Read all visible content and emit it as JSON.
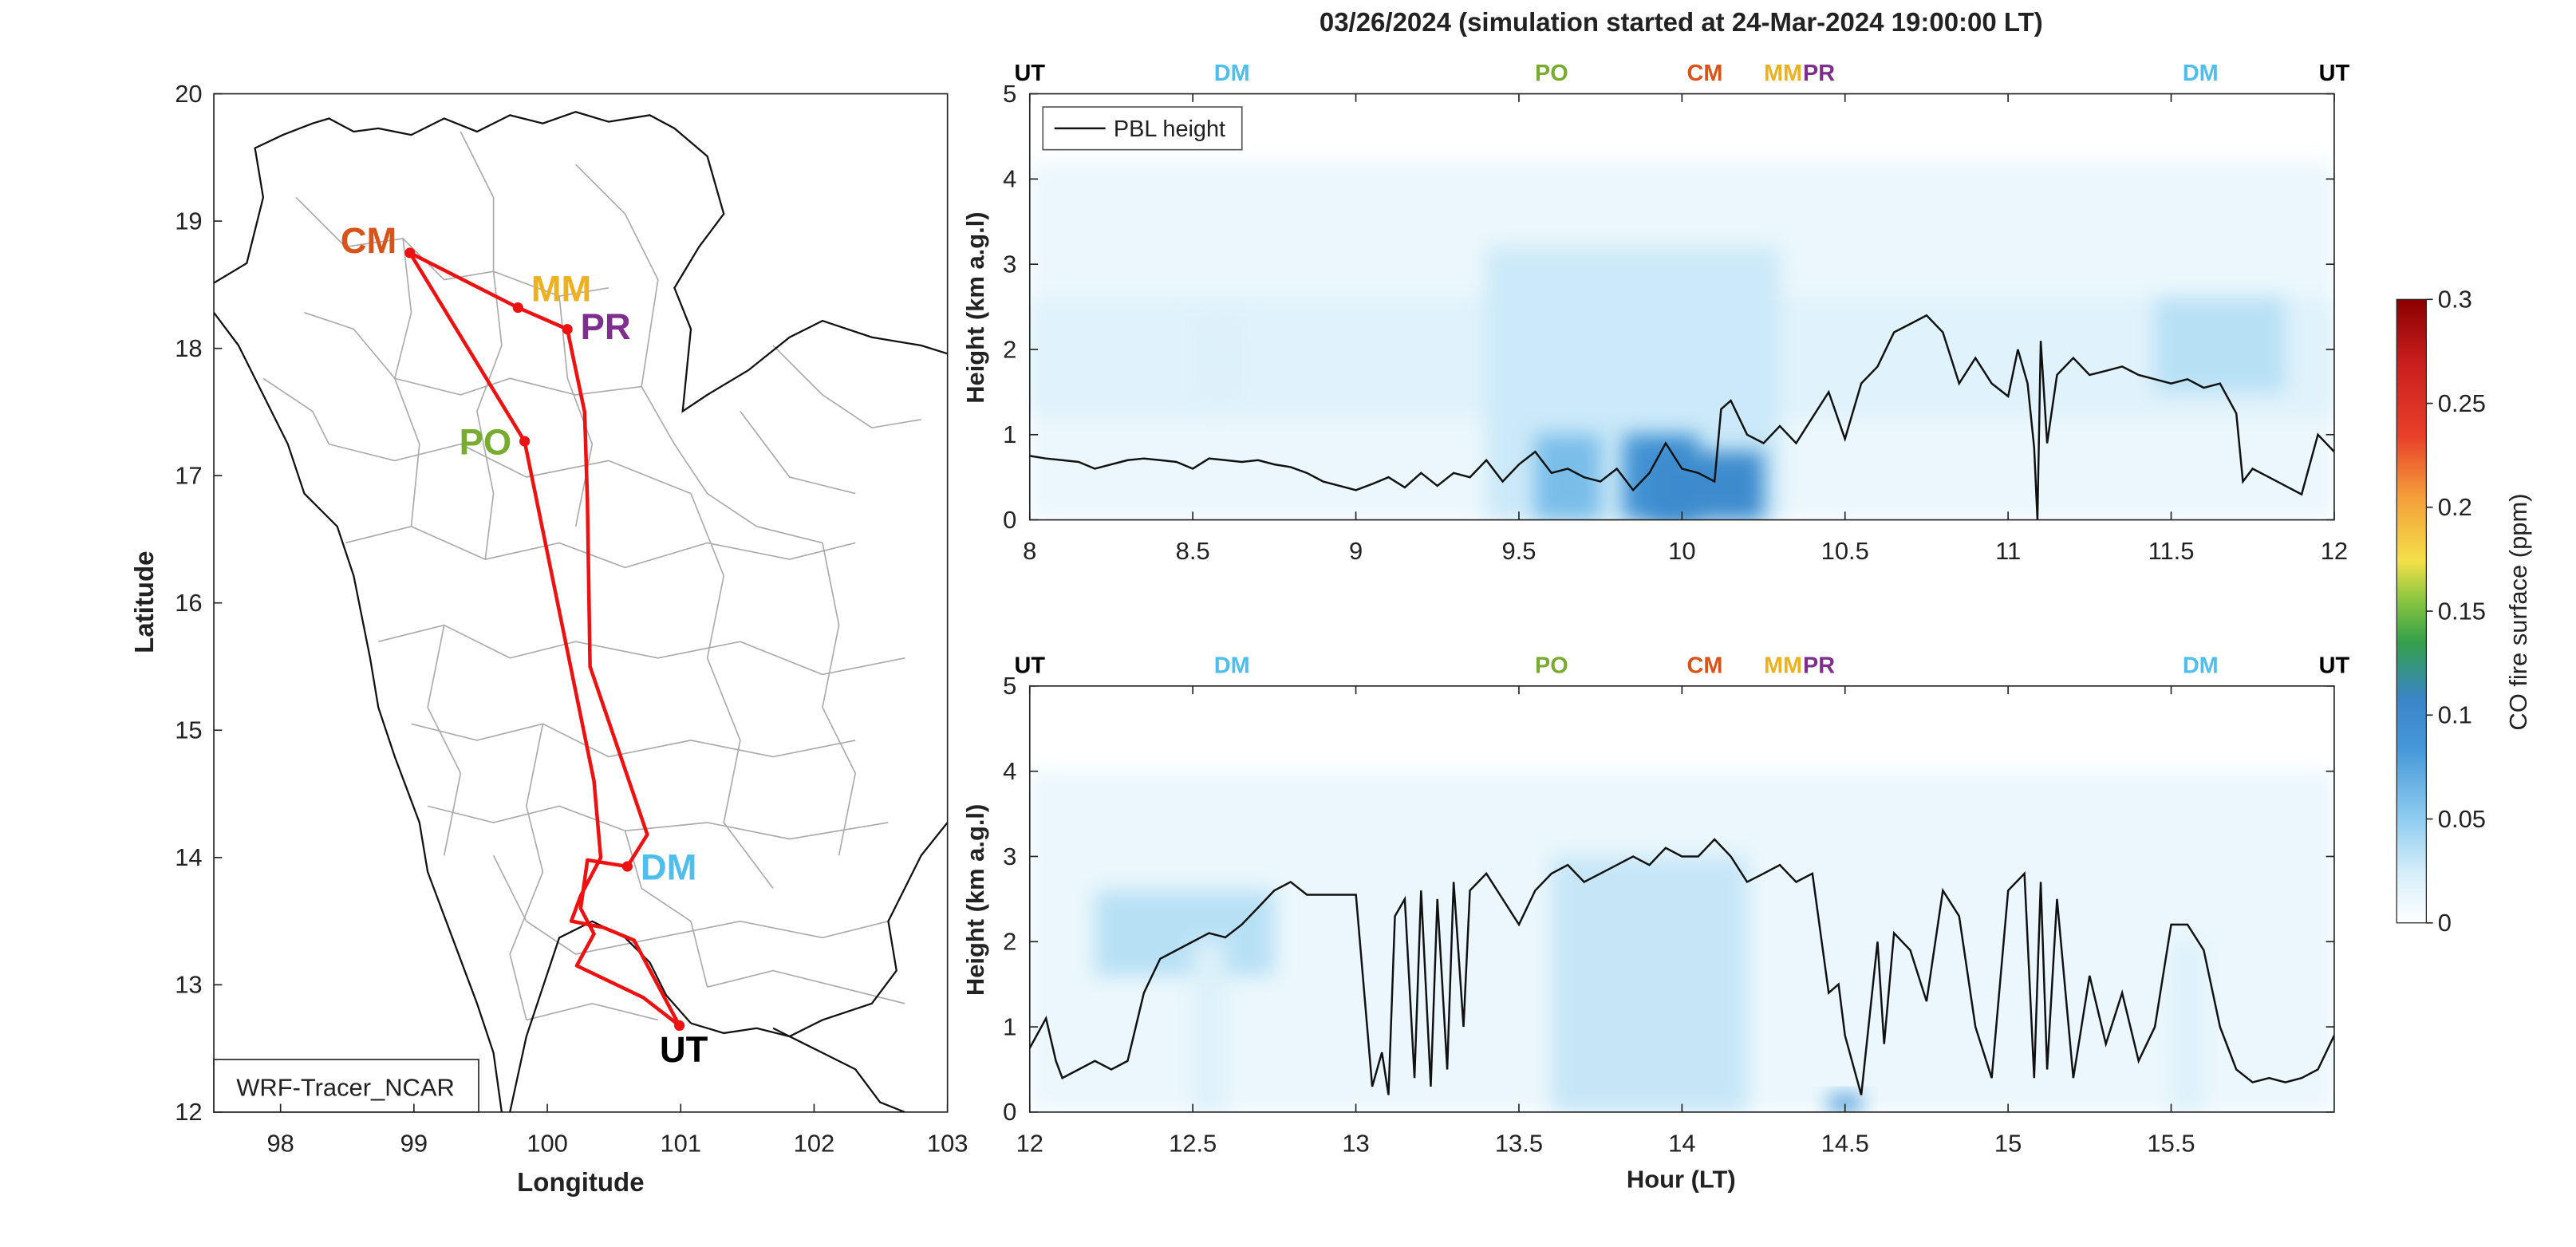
{
  "title": "03/26/2024 (simulation started at 24-Mar-2024 19:00:00 LT)",
  "chart_data": [
    {
      "type": "line",
      "panel": "map",
      "xlabel": "Longitude",
      "ylabel": "Latitude",
      "xlim": [
        97.5,
        103
      ],
      "ylim": [
        12,
        20
      ],
      "xticks": [
        "98",
        "99",
        "100",
        "101",
        "102",
        "103"
      ],
      "yticks": [
        "12",
        "13",
        "14",
        "15",
        "16",
        "17",
        "18",
        "19",
        "20"
      ],
      "model_label": "WRF-Tracer_NCAR",
      "stations": [
        {
          "label": "CM",
          "lon": 98.97,
          "lat": 18.75,
          "color": "#D95319"
        },
        {
          "label": "MM",
          "lon": 99.78,
          "lat": 18.32,
          "color": "#EDB120"
        },
        {
          "label": "PR",
          "lon": 100.15,
          "lat": 18.15,
          "color": "#7E2F8E"
        },
        {
          "label": "PO",
          "lon": 99.83,
          "lat": 17.27,
          "color": "#77AC30"
        },
        {
          "label": "DM",
          "lon": 100.6,
          "lat": 13.93,
          "color": "#4DBEEE"
        },
        {
          "label": "UT",
          "lon": 100.99,
          "lat": 12.68,
          "color": "#000000"
        }
      ],
      "route": {
        "color": "#EE1111",
        "lon": [
          100.99,
          100.72,
          100.22,
          100.35,
          100.25,
          100.3,
          100.6,
          100.75,
          100.32,
          100.3,
          100.28,
          100.2,
          100.15,
          99.78,
          98.97,
          99.83,
          100.35,
          100.4,
          100.25,
          100.18,
          100.42,
          100.65,
          100.99
        ],
        "lat": [
          12.68,
          12.9,
          13.15,
          13.4,
          13.6,
          13.98,
          13.93,
          14.18,
          15.5,
          16.8,
          17.5,
          17.9,
          18.15,
          18.32,
          18.75,
          17.27,
          14.6,
          14.0,
          13.7,
          13.5,
          13.45,
          13.35,
          12.68
        ]
      }
    },
    {
      "type": "heatmap",
      "panel": "top",
      "xlabel": "",
      "ylabel": "Height (km a.g.l)",
      "xlim": [
        8,
        12
      ],
      "ylim": [
        0,
        5
      ],
      "xticks": [
        "8",
        "8.5",
        "9",
        "9.5",
        "10",
        "10.5",
        "11",
        "11.5",
        "12"
      ],
      "yticks": [
        "0",
        "1",
        "2",
        "3",
        "4",
        "5"
      ],
      "legend": "PBL height",
      "station_markers": [
        {
          "label": "UT",
          "x": 8.0,
          "color": "#000000"
        },
        {
          "label": "DM",
          "x": 8.62,
          "color": "#4DBEEE"
        },
        {
          "label": "PO",
          "x": 9.6,
          "color": "#77AC30"
        },
        {
          "label": "CM",
          "x": 10.07,
          "color": "#D95319"
        },
        {
          "label": "MM",
          "x": 10.31,
          "color": "#EDB120"
        },
        {
          "label": "PR",
          "x": 10.42,
          "color": "#7E2F8E"
        },
        {
          "label": "DM",
          "x": 11.59,
          "color": "#4DBEEE"
        },
        {
          "label": "UT",
          "x": 12.0,
          "color": "#000000"
        }
      ],
      "co_plumes": [
        {
          "x": [
            8.0,
            12.0
          ],
          "y": [
            0.0,
            4.2
          ],
          "value": 0.012
        },
        {
          "x": [
            8.0,
            12.0
          ],
          "y": [
            1.2,
            2.6
          ],
          "value": 0.018
        },
        {
          "x": [
            9.4,
            10.3
          ],
          "y": [
            0.0,
            3.2
          ],
          "value": 0.028
        },
        {
          "x": [
            9.55,
            9.75
          ],
          "y": [
            0.0,
            1.0
          ],
          "value": 0.06
        },
        {
          "x": [
            9.82,
            10.05
          ],
          "y": [
            0.0,
            1.0
          ],
          "value": 0.09
        },
        {
          "x": [
            9.9,
            10.25
          ],
          "y": [
            0.0,
            0.8
          ],
          "value": 0.1
        },
        {
          "x": [
            11.45,
            11.85
          ],
          "y": [
            1.5,
            2.6
          ],
          "value": 0.035
        },
        {
          "x": [
            8.5,
            8.65
          ],
          "y": [
            1.4,
            2.4
          ],
          "value": 0.02
        }
      ],
      "pbl": {
        "x": [
          8.0,
          8.05,
          8.1,
          8.15,
          8.2,
          8.25,
          8.3,
          8.35,
          8.4,
          8.45,
          8.5,
          8.55,
          8.6,
          8.65,
          8.7,
          8.75,
          8.8,
          8.85,
          8.9,
          8.95,
          9.0,
          9.05,
          9.1,
          9.15,
          9.2,
          9.25,
          9.3,
          9.35,
          9.4,
          9.45,
          9.5,
          9.55,
          9.6,
          9.65,
          9.7,
          9.75,
          9.8,
          9.85,
          9.9,
          9.95,
          10.0,
          10.05,
          10.1,
          10.12,
          10.15,
          10.2,
          10.25,
          10.3,
          10.35,
          10.4,
          10.45,
          10.5,
          10.55,
          10.6,
          10.65,
          10.7,
          10.75,
          10.8,
          10.85,
          10.9,
          10.95,
          11.0,
          11.03,
          11.06,
          11.08,
          11.09,
          11.1,
          11.12,
          11.15,
          11.2,
          11.25,
          11.3,
          11.35,
          11.4,
          11.45,
          11.5,
          11.55,
          11.6,
          11.65,
          11.7,
          11.72,
          11.75,
          11.8,
          11.85,
          11.9,
          11.95,
          12.0
        ],
        "y": [
          0.75,
          0.72,
          0.7,
          0.68,
          0.6,
          0.65,
          0.7,
          0.72,
          0.7,
          0.68,
          0.6,
          0.72,
          0.7,
          0.68,
          0.7,
          0.65,
          0.62,
          0.55,
          0.45,
          0.4,
          0.35,
          0.42,
          0.5,
          0.38,
          0.55,
          0.4,
          0.55,
          0.5,
          0.7,
          0.45,
          0.65,
          0.8,
          0.55,
          0.6,
          0.5,
          0.45,
          0.6,
          0.35,
          0.55,
          0.9,
          0.6,
          0.55,
          0.45,
          1.3,
          1.4,
          1.0,
          0.9,
          1.1,
          0.9,
          1.2,
          1.5,
          0.95,
          1.6,
          1.8,
          2.2,
          2.3,
          2.4,
          2.2,
          1.6,
          1.9,
          1.6,
          1.45,
          2.0,
          1.6,
          0.85,
          0.0,
          2.1,
          0.9,
          1.7,
          1.9,
          1.7,
          1.75,
          1.8,
          1.7,
          1.65,
          1.6,
          1.65,
          1.55,
          1.6,
          1.25,
          0.45,
          0.6,
          0.5,
          0.4,
          0.3,
          1.0,
          0.8
        ]
      }
    },
    {
      "type": "heatmap",
      "panel": "bottom",
      "xlabel": "Hour (LT)",
      "ylabel": "Height (km a.g.l)",
      "xlim": [
        12,
        16
      ],
      "ylim": [
        0,
        5
      ],
      "xticks": [
        "12",
        "12.5",
        "13",
        "13.5",
        "14",
        "14.5",
        "15",
        "15.5"
      ],
      "yticks": [
        "0",
        "1",
        "2",
        "3",
        "4",
        "5"
      ],
      "station_markers": [
        {
          "label": "UT",
          "x": 12.0,
          "color": "#000000"
        },
        {
          "label": "DM",
          "x": 12.62,
          "color": "#4DBEEE"
        },
        {
          "label": "PO",
          "x": 13.6,
          "color": "#77AC30"
        },
        {
          "label": "CM",
          "x": 14.07,
          "color": "#D95319"
        },
        {
          "label": "MM",
          "x": 14.31,
          "color": "#EDB120"
        },
        {
          "label": "PR",
          "x": 14.42,
          "color": "#7E2F8E"
        },
        {
          "label": "DM",
          "x": 15.59,
          "color": "#4DBEEE"
        },
        {
          "label": "UT",
          "x": 16.0,
          "color": "#000000"
        }
      ],
      "co_plumes": [
        {
          "x": [
            12.0,
            16.0
          ],
          "y": [
            0.0,
            4.0
          ],
          "value": 0.012
        },
        {
          "x": [
            12.2,
            12.75
          ],
          "y": [
            1.6,
            2.6
          ],
          "value": 0.035
        },
        {
          "x": [
            13.6,
            14.2
          ],
          "y": [
            0.0,
            3.0
          ],
          "value": 0.03
        },
        {
          "x": [
            14.45,
            14.55
          ],
          "y": [
            0.0,
            0.2
          ],
          "value": 0.08
        },
        {
          "x": [
            12.5,
            12.6
          ],
          "y": [
            0.0,
            2.0
          ],
          "value": 0.02
        },
        {
          "x": [
            15.5,
            15.6
          ],
          "y": [
            0.0,
            2.0
          ],
          "value": 0.02
        }
      ],
      "pbl": {
        "x": [
          12.0,
          12.05,
          12.08,
          12.1,
          12.15,
          12.2,
          12.25,
          12.3,
          12.35,
          12.4,
          12.45,
          12.5,
          12.55,
          12.6,
          12.65,
          12.7,
          12.75,
          12.8,
          12.85,
          12.9,
          12.95,
          13.0,
          13.05,
          13.08,
          13.1,
          13.12,
          13.15,
          13.18,
          13.2,
          13.23,
          13.25,
          13.28,
          13.3,
          13.33,
          13.35,
          13.4,
          13.45,
          13.5,
          13.55,
          13.6,
          13.65,
          13.7,
          13.75,
          13.8,
          13.85,
          13.9,
          13.95,
          14.0,
          14.05,
          14.1,
          14.15,
          14.2,
          14.25,
          14.3,
          14.35,
          14.4,
          14.45,
          14.48,
          14.5,
          14.55,
          14.6,
          14.62,
          14.65,
          14.7,
          14.75,
          14.8,
          14.85,
          14.9,
          14.95,
          15.0,
          15.05,
          15.08,
          15.1,
          15.12,
          15.15,
          15.2,
          15.25,
          15.3,
          15.35,
          15.4,
          15.45,
          15.5,
          15.55,
          15.6,
          15.65,
          15.7,
          15.75,
          15.8,
          15.85,
          15.9,
          15.95,
          16.0
        ],
        "y": [
          0.75,
          1.1,
          0.6,
          0.4,
          0.5,
          0.6,
          0.5,
          0.6,
          1.4,
          1.8,
          1.9,
          2.0,
          2.1,
          2.05,
          2.2,
          2.4,
          2.6,
          2.7,
          2.55,
          2.55,
          2.55,
          2.55,
          0.3,
          0.7,
          0.2,
          2.3,
          2.5,
          0.4,
          2.6,
          0.3,
          2.5,
          0.5,
          2.7,
          1.0,
          2.6,
          2.8,
          2.5,
          2.2,
          2.6,
          2.8,
          2.9,
          2.7,
          2.8,
          2.9,
          3.0,
          2.9,
          3.1,
          3.0,
          3.0,
          3.2,
          3.0,
          2.7,
          2.8,
          2.9,
          2.7,
          2.8,
          1.4,
          1.5,
          0.9,
          0.2,
          2.0,
          0.8,
          2.1,
          1.9,
          1.3,
          2.6,
          2.3,
          1.0,
          0.4,
          2.6,
          2.8,
          0.4,
          2.7,
          0.5,
          2.5,
          0.4,
          1.6,
          0.8,
          1.4,
          0.6,
          1.0,
          2.2,
          2.2,
          1.9,
          1.0,
          0.5,
          0.35,
          0.4,
          0.35,
          0.4,
          0.5,
          0.9
        ]
      }
    },
    {
      "type": "colorbar",
      "label": "CO fire surface (ppm)",
      "range": [
        0,
        0.3
      ],
      "ticks": [
        "0",
        "0.05",
        "0.1",
        "0.15",
        "0.2",
        "0.25",
        "0.3"
      ],
      "colors": [
        "#FFFFFF",
        "#CFEAF8",
        "#7DC1EC",
        "#3C8FD4",
        "#2EA043",
        "#8DC63F",
        "#F3E04A",
        "#F5A03A",
        "#E8412A",
        "#C81E1E",
        "#8B0000"
      ]
    }
  ]
}
